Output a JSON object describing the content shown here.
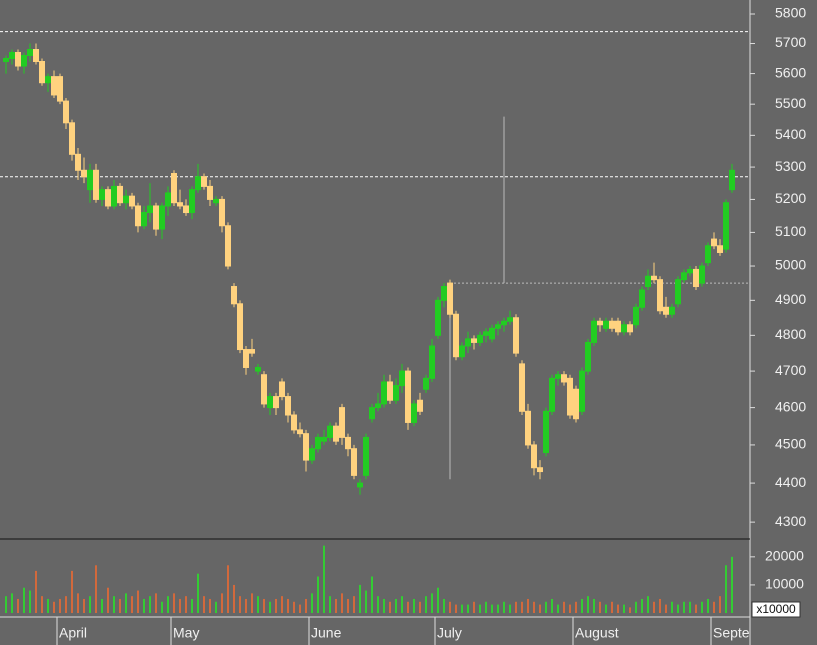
{
  "chart_data": {
    "type": "candlestick",
    "ylog": true,
    "ylim": [
      4260,
      5848
    ],
    "yticks": [
      4300,
      4400,
      4500,
      4600,
      4700,
      4800,
      4900,
      5000,
      5100,
      5200,
      5300,
      5400,
      5500,
      5600,
      5700,
      5800
    ],
    "up_color": "#22cc22",
    "down_color": "#ffd27f",
    "volume_up_color": "#33cc33",
    "volume_down_color": "#d2693c",
    "categories": [
      null,
      null,
      null,
      null,
      null,
      null,
      null,
      null,
      null,
      "April",
      null,
      null,
      null,
      null,
      null,
      null,
      null,
      null,
      null,
      null,
      null,
      null,
      null,
      null,
      null,
      null,
      null,
      null,
      "May",
      null,
      null,
      null,
      null,
      null,
      null,
      null,
      null,
      null,
      null,
      null,
      null,
      null,
      null,
      null,
      null,
      null,
      null,
      null,
      null,
      null,
      null,
      "June",
      null,
      null,
      null,
      null,
      null,
      null,
      null,
      null,
      null,
      null,
      null,
      null,
      null,
      null,
      null,
      null,
      null,
      null,
      null,
      null,
      "July",
      null,
      null,
      null,
      null,
      null,
      null,
      null,
      null,
      null,
      null,
      null,
      null,
      null,
      null,
      null,
      null,
      null,
      null,
      null,
      null,
      null,
      null,
      "August",
      null,
      null,
      null,
      null,
      null,
      null,
      null,
      null,
      null,
      null,
      null,
      null,
      null,
      null,
      null,
      null,
      null,
      null,
      null,
      null,
      null,
      null,
      "Septe",
      null,
      null,
      null
    ],
    "open": [
      5640,
      5650,
      5670,
      5625,
      5660,
      5680,
      5640,
      5570,
      5590,
      5590,
      5510,
      5440,
      5340,
      5290,
      5230,
      5290,
      5200,
      5230,
      5180,
      5240,
      5190,
      5210,
      5180,
      5120,
      5160,
      5180,
      5110,
      5180,
      5280,
      5190,
      5180,
      5160,
      5230,
      5270,
      5240,
      5190,
      5200,
      5120,
      4940,
      4890,
      4760,
      4760,
      4700,
      4690,
      4600,
      4630,
      4670,
      4630,
      4580,
      4540,
      4530,
      4460,
      4490,
      4510,
      4520,
      4550,
      4600,
      4520,
      4490,
      4390,
      4420,
      4570,
      4600,
      4610,
      4670,
      4620,
      4660,
      4700,
      4560,
      4620,
      4650,
      4680,
      4800,
      4900,
      4950,
      4860,
      4740,
      4770,
      4790,
      4780,
      4800,
      4790,
      4820,
      4830,
      4840,
      4850,
      4720,
      4590,
      4500,
      4440,
      4480,
      4590,
      4680,
      4690,
      4680,
      4650,
      4590,
      4700,
      4780,
      4840,
      4820,
      4840,
      4840,
      4810,
      4830,
      4830,
      4880,
      4940,
      4970,
      4960,
      4880,
      4860,
      4890,
      4960,
      4980,
      4990,
      4950,
      5010,
      5080,
      5060,
      5050,
      5230
    ],
    "high": [
      5660,
      5680,
      5680,
      5670,
      5700,
      5700,
      5650,
      5600,
      5610,
      5600,
      5520,
      5450,
      5360,
      5330,
      5310,
      5310,
      5240,
      5240,
      5260,
      5250,
      5230,
      5220,
      5190,
      5180,
      5250,
      5190,
      5190,
      5240,
      5290,
      5230,
      5200,
      5240,
      5310,
      5280,
      5260,
      5210,
      5210,
      5130,
      4950,
      4900,
      4770,
      4790,
      4720,
      4700,
      4640,
      4640,
      4680,
      4640,
      4590,
      4560,
      4540,
      4500,
      4530,
      4540,
      4560,
      4560,
      4610,
      4530,
      4500,
      4410,
      4530,
      4610,
      4640,
      4690,
      4690,
      4680,
      4720,
      4710,
      4620,
      4640,
      4690,
      4790,
      4910,
      4950,
      4960,
      4870,
      4780,
      4810,
      4800,
      4810,
      4820,
      4830,
      4840,
      4850,
      4870,
      4860,
      4730,
      4610,
      4510,
      4460,
      4600,
      4690,
      4700,
      4700,
      4690,
      4660,
      4710,
      4790,
      4850,
      4850,
      4850,
      4850,
      4850,
      4840,
      4840,
      4890,
      4940,
      4990,
      5010,
      4970,
      4910,
      4890,
      4970,
      4990,
      5000,
      5000,
      5010,
      5070,
      5100,
      5080,
      5200,
      5310
    ],
    "low": [
      5600,
      5630,
      5610,
      5600,
      5640,
      5630,
      5560,
      5540,
      5520,
      5500,
      5420,
      5320,
      5260,
      5250,
      5190,
      5190,
      5180,
      5170,
      5170,
      5180,
      5170,
      5170,
      5100,
      5110,
      5130,
      5090,
      5080,
      5150,
      5180,
      5170,
      5150,
      5140,
      5220,
      5230,
      5180,
      5180,
      5100,
      4990,
      4880,
      4750,
      4690,
      4740,
      4690,
      4600,
      4580,
      4580,
      4620,
      4560,
      4530,
      4520,
      4430,
      4450,
      4480,
      4500,
      4510,
      4500,
      4500,
      4470,
      4410,
      4370,
      4410,
      4560,
      4590,
      4600,
      4610,
      4610,
      4640,
      4540,
      4550,
      4580,
      4640,
      4670,
      4790,
      4880,
      4850,
      4730,
      4730,
      4750,
      4760,
      4770,
      4780,
      4780,
      4800,
      4810,
      4830,
      4740,
      4580,
      4490,
      4420,
      4410,
      4470,
      4580,
      4660,
      4660,
      4570,
      4560,
      4580,
      4690,
      4770,
      4810,
      4810,
      4810,
      4800,
      4800,
      4800,
      4820,
      4870,
      4930,
      4950,
      4860,
      4850,
      4850,
      4880,
      4950,
      4970,
      4930,
      4940,
      5000,
      5050,
      5030,
      5040,
      5220
    ],
    "close": [
      5650,
      5670,
      5625,
      5660,
      5680,
      5640,
      5570,
      5590,
      5530,
      5510,
      5440,
      5340,
      5290,
      5270,
      5290,
      5200,
      5230,
      5180,
      5240,
      5190,
      5210,
      5180,
      5120,
      5160,
      5180,
      5110,
      5180,
      5220,
      5190,
      5180,
      5160,
      5230,
      5270,
      5240,
      5200,
      5200,
      5120,
      5000,
      4890,
      4760,
      4710,
      4750,
      4710,
      4610,
      4630,
      4600,
      4630,
      4580,
      4540,
      4530,
      4460,
      4490,
      4520,
      4520,
      4550,
      4510,
      4520,
      4490,
      4420,
      4400,
      4520,
      4600,
      4610,
      4670,
      4620,
      4660,
      4700,
      4560,
      4610,
      4590,
      4680,
      4770,
      4900,
      4940,
      4860,
      4740,
      4770,
      4790,
      4780,
      4800,
      4810,
      4820,
      4830,
      4840,
      4850,
      4750,
      4590,
      4500,
      4440,
      4430,
      4590,
      4680,
      4690,
      4670,
      4580,
      4570,
      4700,
      4780,
      4840,
      4830,
      4840,
      4820,
      4810,
      4830,
      4810,
      4880,
      4930,
      4970,
      4960,
      4870,
      4860,
      4880,
      4960,
      4980,
      4990,
      4940,
      5000,
      5060,
      5060,
      5040,
      5190,
      5290
    ],
    "volume": [
      6000,
      7000,
      5000,
      9000,
      8000,
      15000,
      6000,
      5000,
      4000,
      5000,
      6000,
      15000,
      7000,
      5000,
      6000,
      17000,
      5000,
      9000,
      6000,
      5000,
      7000,
      6000,
      8000,
      5000,
      6000,
      7000,
      4000,
      6000,
      7000,
      5000,
      6000,
      5000,
      14000,
      6000,
      5000,
      4000,
      7000,
      17000,
      10000,
      6000,
      5000,
      7000,
      6000,
      5000,
      4000,
      5000,
      6000,
      5000,
      4000,
      3000,
      5000,
      7000,
      13000,
      24000,
      6000,
      5000,
      7000,
      5000,
      6000,
      10000,
      8000,
      13000,
      6000,
      5000,
      4000,
      5000,
      6000,
      4000,
      5000,
      4000,
      6000,
      7000,
      9000,
      5000,
      4000,
      3000,
      3000,
      3000,
      4000,
      3000,
      4000,
      3000,
      3000,
      4000,
      3000,
      4000,
      4000,
      5000,
      4000,
      3000,
      4000,
      5000,
      3000,
      4000,
      3000,
      4000,
      5000,
      6000,
      5000,
      4000,
      3000,
      4000,
      3000,
      3000,
      2000,
      4000,
      5000,
      6000,
      4000,
      5000,
      3000,
      4000,
      3000,
      4000,
      4000,
      3000,
      4000,
      5000,
      4000,
      6000,
      17000,
      20000
    ],
    "volume_ylim": [
      0,
      26000
    ],
    "volume_yticks": [
      10000,
      20000
    ],
    "volume_unit_label": "x10000",
    "hlines": [
      5740,
      5270
    ],
    "lines": [
      {
        "from": [
          74,
          4410
        ],
        "to": [
          74,
          4950
        ]
      },
      {
        "from": [
          83,
          4950
        ],
        "to": [
          83,
          5460
        ]
      },
      {
        "from": [
          74,
          4950
        ],
        "to": [
          121,
          4950
        ]
      }
    ]
  }
}
